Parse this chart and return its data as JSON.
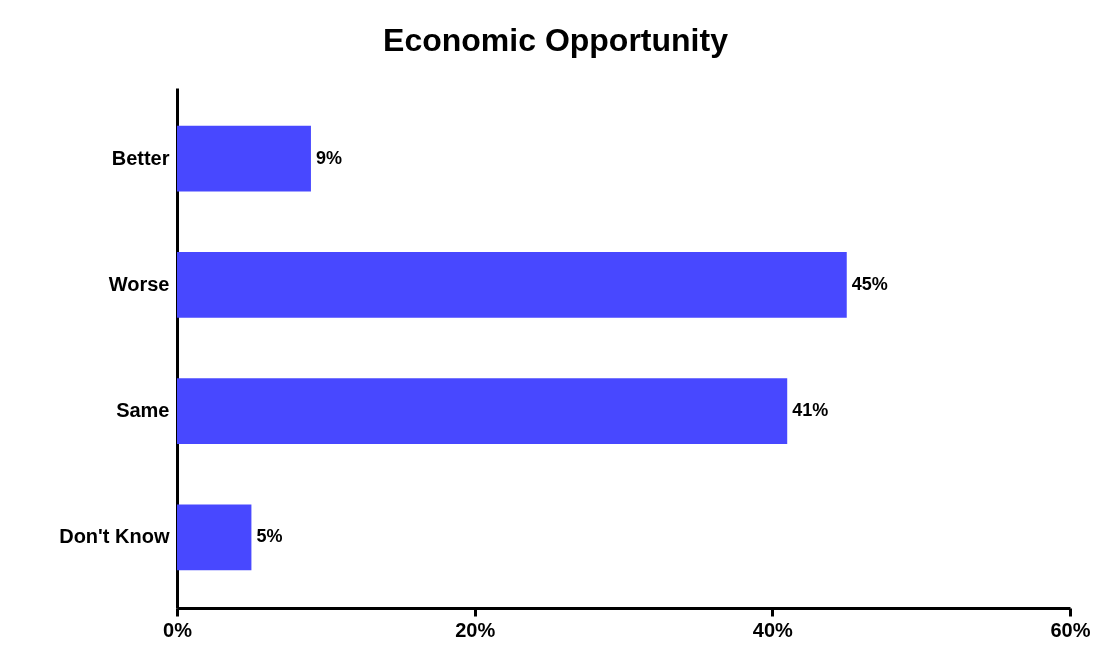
{
  "chart_data": {
    "type": "bar",
    "title": "Economic Opportunity",
    "orientation": "horizontal",
    "categories": [
      "Better",
      "Worse",
      "Same",
      "Don't Know"
    ],
    "values": [
      9,
      45,
      41,
      5
    ],
    "value_labels": [
      "9%",
      "45%",
      "41%",
      "5%"
    ],
    "color": "#4848ff",
    "xlim": [
      0,
      60
    ],
    "xticks": [
      {
        "value": 0,
        "label": "0%"
      },
      {
        "value": 20,
        "label": "20%"
      },
      {
        "value": 40,
        "label": "40%"
      },
      {
        "value": 60,
        "label": "60%"
      }
    ],
    "grid": false
  }
}
